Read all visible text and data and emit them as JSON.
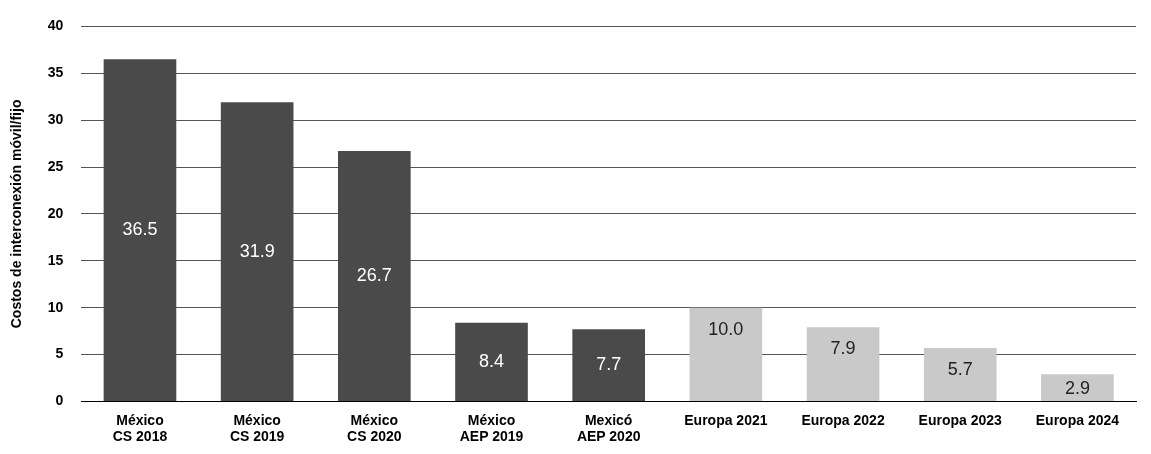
{
  "chart_data": {
    "type": "bar",
    "ylabel": "Costos de interconexión móvil/fijo",
    "categories": [
      "México\nCS 2018",
      "México\nCS 2019",
      "México\nCS 2020",
      "México\nAEP 2019",
      "Mexicó\nAEP 2020",
      "Europa 2021",
      "Europa 2022",
      "Europa 2023",
      "Europa 2024"
    ],
    "values": [
      36.5,
      31.9,
      26.7,
      8.4,
      7.7,
      10.0,
      7.9,
      5.7,
      2.9
    ],
    "colors": [
      "#4a4a4a",
      "#4a4a4a",
      "#4a4a4a",
      "#4a4a4a",
      "#4a4a4a",
      "#c9c9c9",
      "#c9c9c9",
      "#c9c9c9",
      "#c9c9c9"
    ],
    "value_labels": [
      "36.5",
      "31.9",
      "26.7",
      "8.4",
      "7.7",
      "10.0",
      "7.9",
      "5.7",
      "2.9"
    ],
    "ylim": [
      0,
      40
    ],
    "yticks": [
      0,
      5,
      10,
      15,
      20,
      25,
      30,
      35,
      40
    ],
    "grid": "y",
    "legend": false
  }
}
